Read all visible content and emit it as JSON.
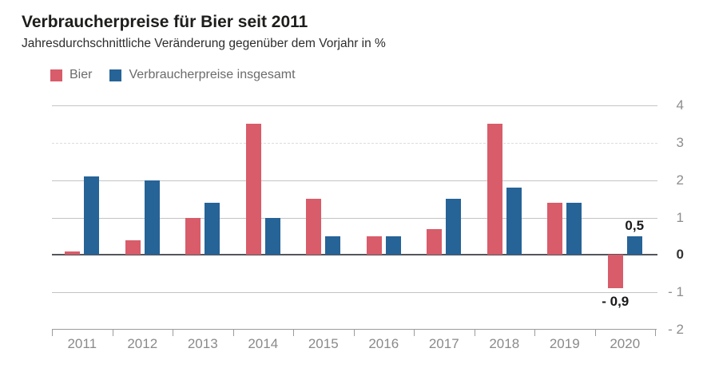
{
  "chart_data": {
    "type": "bar",
    "title": "Verbraucherpreise für Bier seit 2011",
    "subtitle": "Jahresdurchschnittliche Veränderung gegenüber dem Vorjahr in %",
    "unit": "%",
    "categories": [
      "2011",
      "2012",
      "2013",
      "2014",
      "2015",
      "2016",
      "2017",
      "2018",
      "2019",
      "2020"
    ],
    "series": [
      {
        "name": "Bier",
        "color": "#d85c69",
        "values": [
          0.1,
          0.4,
          1.0,
          3.5,
          1.5,
          0.5,
          0.7,
          3.5,
          1.4,
          -0.9
        ]
      },
      {
        "name": "Verbraucherpreise insgesamt",
        "color": "#266397",
        "values": [
          2.1,
          2.0,
          1.4,
          1.0,
          0.5,
          0.5,
          1.5,
          1.8,
          1.4,
          0.5
        ]
      }
    ],
    "y_ticks": [
      {
        "value": 4,
        "label": "4"
      },
      {
        "value": 3,
        "label": "3"
      },
      {
        "value": 2,
        "label": "2"
      },
      {
        "value": 1,
        "label": "1"
      },
      {
        "value": 0,
        "label": "0"
      },
      {
        "value": -1,
        "label": "- 1"
      },
      {
        "value": -2,
        "label": "- 2"
      }
    ],
    "ylim": [
      -2,
      4
    ],
    "grid": true,
    "legend_position": "top-left",
    "annotations": [
      {
        "series": "Verbraucherpreise insgesamt",
        "category": "2020",
        "text": "0,5"
      },
      {
        "series": "Bier",
        "category": "2020",
        "text": "- 0,9"
      }
    ]
  }
}
